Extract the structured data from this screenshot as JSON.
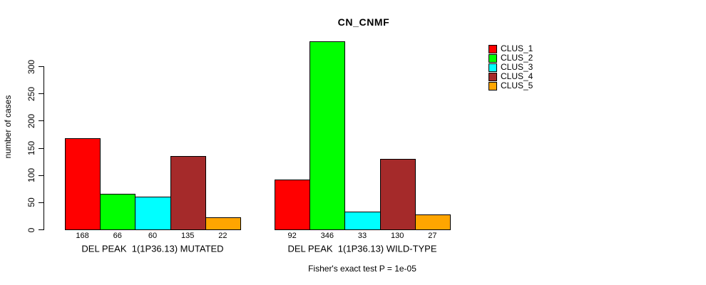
{
  "chart_data": {
    "type": "bar",
    "title": "CN_CNMF",
    "ylabel": "number of cases",
    "xlabel": "",
    "ylim": [
      0,
      375
    ],
    "yticks": [
      0,
      50,
      100,
      150,
      200,
      250,
      300
    ],
    "grid": false,
    "legend_position": "top-right",
    "series": [
      {
        "name": "CLUS_1",
        "color": "#FF0000"
      },
      {
        "name": "CLUS_2",
        "color": "#00FF00"
      },
      {
        "name": "CLUS_3",
        "color": "#00FFFF"
      },
      {
        "name": "CLUS_4",
        "color": "#A52A2A"
      },
      {
        "name": "CLUS_5",
        "color": "#FFA500"
      }
    ],
    "groups": [
      {
        "label": "DEL PEAK  1(1P36.13) MUTATED",
        "values": [
          168,
          66,
          60,
          135,
          22
        ]
      },
      {
        "label": "DEL PEAK  1(1P36.13) WILD-TYPE",
        "values": [
          92,
          346,
          33,
          130,
          27
        ]
      }
    ],
    "footnote": "Fisher's exact test P = 1e-05"
  }
}
